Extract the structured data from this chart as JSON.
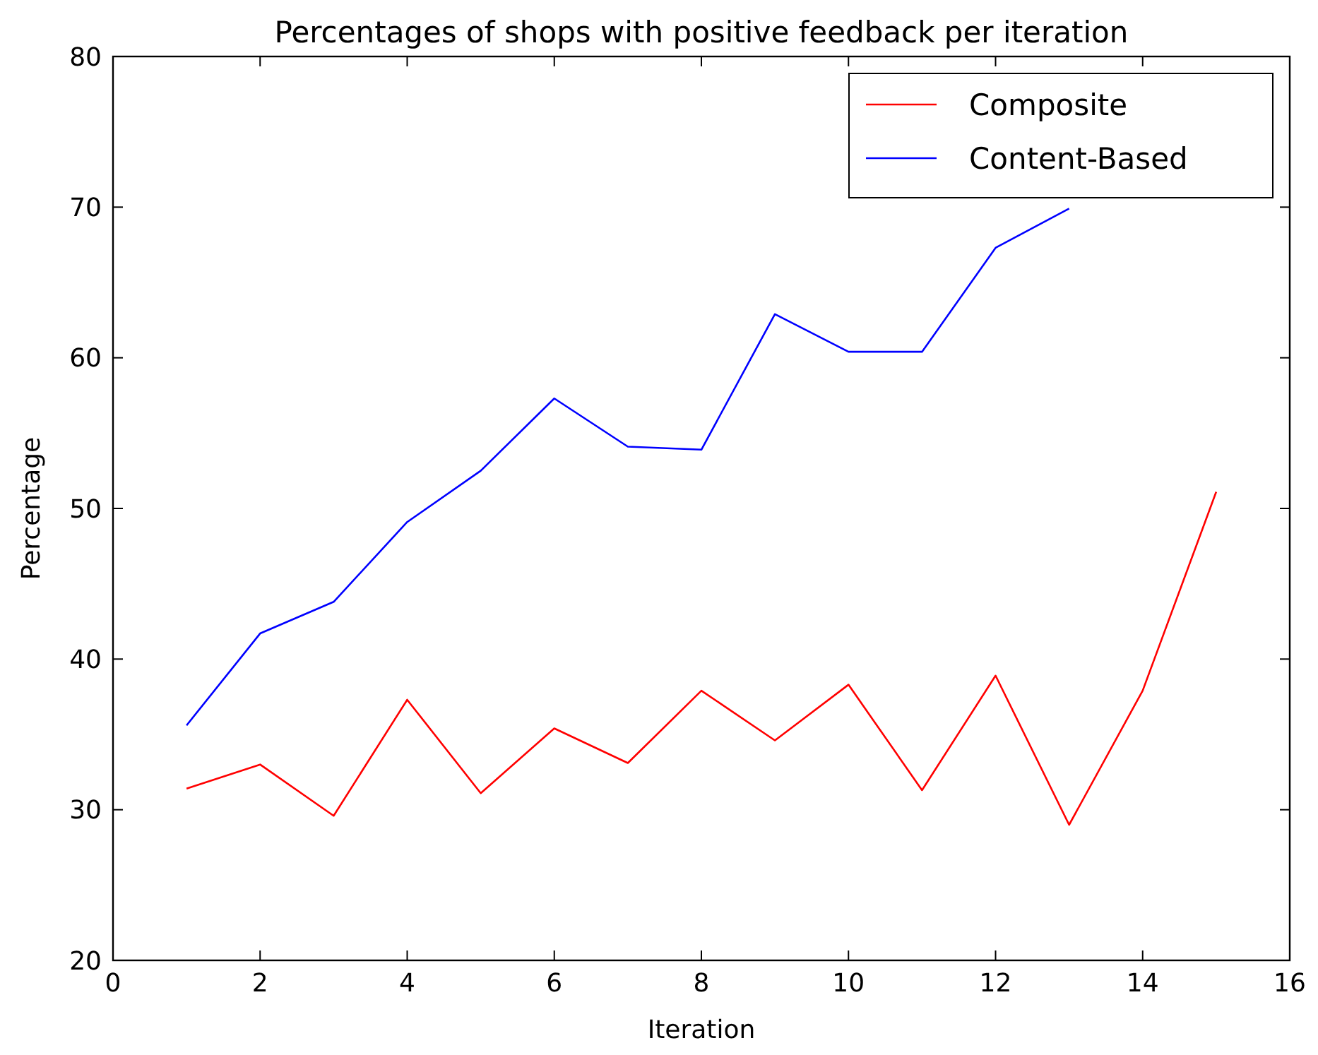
{
  "chart_data": {
    "type": "line",
    "title": "Percentages of shops with positive feedback per iteration",
    "xlabel": "Iteration",
    "ylabel": "Percentage",
    "x": [
      1,
      2,
      3,
      4,
      5,
      6,
      7,
      8,
      9,
      10,
      11,
      12,
      13,
      14,
      15
    ],
    "series": [
      {
        "name": "Composite",
        "color": "#ff0000",
        "values": [
          31.4,
          33.0,
          29.6,
          37.3,
          31.1,
          35.4,
          33.1,
          37.9,
          34.6,
          38.3,
          31.3,
          38.9,
          29.0,
          37.9,
          51.1
        ]
      },
      {
        "name": "Content-Based",
        "color": "#0000ff",
        "values": [
          35.6,
          41.7,
          43.8,
          49.1,
          52.5,
          57.3,
          54.1,
          53.9,
          62.9,
          60.4,
          60.4,
          67.3,
          69.9,
          null,
          null
        ]
      }
    ],
    "xlim": [
      0,
      16
    ],
    "xticks": [
      0,
      2,
      4,
      6,
      8,
      10,
      12,
      14,
      16
    ],
    "ylim": [
      20,
      80
    ],
    "yticks": [
      20,
      30,
      40,
      50,
      60,
      70,
      80
    ],
    "grid": false,
    "legend": "top right",
    "marker": "none",
    "line_style": "solid"
  }
}
